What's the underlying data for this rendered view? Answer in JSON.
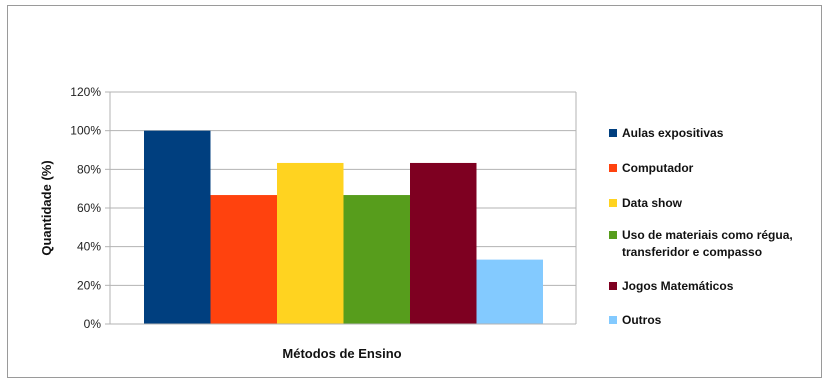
{
  "chart_data": {
    "type": "bar",
    "title": "",
    "xlabel": "Métodos de Ensino",
    "ylabel": "Quantidade (%)",
    "ylim": [
      0,
      120
    ],
    "y_ticks": [
      0,
      20,
      40,
      60,
      80,
      100,
      120
    ],
    "y_tick_labels": [
      "0%",
      "20%",
      "40%",
      "60%",
      "80%",
      "100%",
      "120%"
    ],
    "grid": true,
    "legend_position": "right",
    "series": [
      {
        "name": "Aulas expositivas",
        "value": 100,
        "color": "#003f7f"
      },
      {
        "name": "Computador",
        "value": 66.7,
        "color": "#ff420e"
      },
      {
        "name": "Data show",
        "value": 83.3,
        "color": "#ffd320"
      },
      {
        "name": "Uso de materiais como régua, transferidor e compasso",
        "value": 66.7,
        "color": "#579d1c"
      },
      {
        "name": "Jogos Matemáticos",
        "value": 83.3,
        "color": "#7e0021"
      },
      {
        "name": "Outros",
        "value": 33.3,
        "color": "#83caff"
      }
    ],
    "legend_lines": [
      [
        "Aulas expositivas"
      ],
      [
        "Computador"
      ],
      [
        "Data show"
      ],
      [
        "Uso de materiais como régua,",
        "transferidor e compasso"
      ],
      [
        "Jogos Matemáticos"
      ],
      [
        "Outros"
      ]
    ]
  }
}
